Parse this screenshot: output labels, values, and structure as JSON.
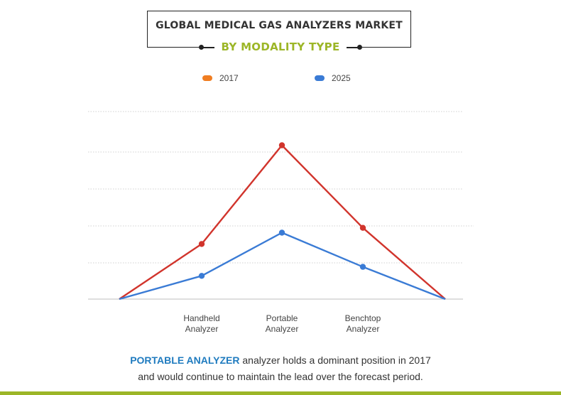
{
  "header": {
    "title": "GLOBAL MEDICAL GAS ANALYZERS MARKET",
    "subtitle": "BY MODALITY TYPE"
  },
  "colors": {
    "series_2017_line": "#d1342c",
    "series_2017_legend": "#f07d21",
    "series_2025": "#3a7bd5",
    "accent_green": "#9cb627",
    "highlight_blue": "#1f7bbf"
  },
  "chart_data": {
    "type": "line",
    "title": "",
    "xlabel": "",
    "ylabel": "",
    "categories": [
      "",
      "Handheld\nAnalyzer",
      "Portable\nAnalyzer",
      "Benchtop\nAnalyzer",
      ""
    ],
    "category_lines": [
      [],
      [
        "Handheld",
        "Analyzer"
      ],
      [
        "Portable",
        "Analyzer"
      ],
      [
        "Benchtop",
        "Analyzer"
      ],
      []
    ],
    "ylim": [
      0,
      5
    ],
    "grid": true,
    "legend_position": "top",
    "series": [
      {
        "name": "2017",
        "values": [
          0,
          1.47,
          4.1,
          1.9,
          0
        ]
      },
      {
        "name": "2025",
        "values": [
          0,
          0.62,
          1.77,
          0.86,
          0
        ]
      }
    ]
  },
  "footer": {
    "highlight": "PORTABLE ANALYZER",
    "line1_rest": " analyzer holds a dominant position in 2017",
    "line2": "and would continue to maintain the lead over the forecast period."
  }
}
